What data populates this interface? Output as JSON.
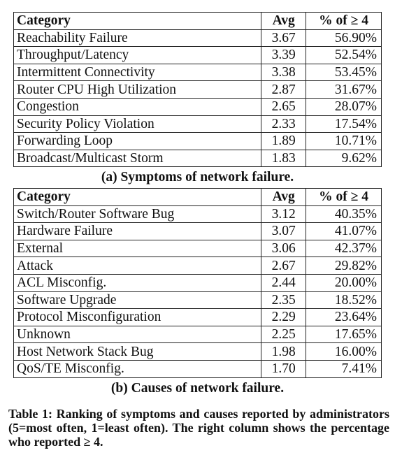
{
  "table_a": {
    "headers": [
      "Category",
      "Avg",
      "% of ≥ 4"
    ],
    "rows": [
      [
        "Reachability Failure",
        "3.67",
        "56.90%"
      ],
      [
        "Throughput/Latency",
        "3.39",
        "52.54%"
      ],
      [
        "Intermittent Connectivity",
        "3.38",
        "53.45%"
      ],
      [
        "Router CPU High Utilization",
        "2.87",
        "31.67%"
      ],
      [
        "Congestion",
        "2.65",
        "28.07%"
      ],
      [
        "Security Policy Violation",
        "2.33",
        "17.54%"
      ],
      [
        "Forwarding Loop",
        "1.89",
        "10.71%"
      ],
      [
        "Broadcast/Multicast Storm",
        "1.83",
        "9.62%"
      ]
    ],
    "caption": "(a) Symptoms of network failure."
  },
  "table_b": {
    "headers": [
      "Category",
      "Avg",
      "% of ≥ 4"
    ],
    "rows": [
      [
        "Switch/Router Software Bug",
        "3.12",
        "40.35%"
      ],
      [
        "Hardware Failure",
        "3.07",
        "41.07%"
      ],
      [
        "External",
        "3.06",
        "42.37%"
      ],
      [
        "Attack",
        "2.67",
        "29.82%"
      ],
      [
        "ACL Misconfig.",
        "2.44",
        "20.00%"
      ],
      [
        "Software Upgrade",
        "2.35",
        "18.52%"
      ],
      [
        "Protocol Misconfiguration",
        "2.29",
        "23.64%"
      ],
      [
        "Unknown",
        "2.25",
        "17.65%"
      ],
      [
        "Host Network Stack Bug",
        "1.98",
        "16.00%"
      ],
      [
        "QoS/TE Misconfig.",
        "1.70",
        "7.41%"
      ]
    ],
    "caption": "(b) Causes of network failure."
  },
  "table_caption": "Table 1: Ranking of symptoms and causes reported by administrators (5=most often, 1=least often). The right column shows the percentage who reported ≥ 4."
}
